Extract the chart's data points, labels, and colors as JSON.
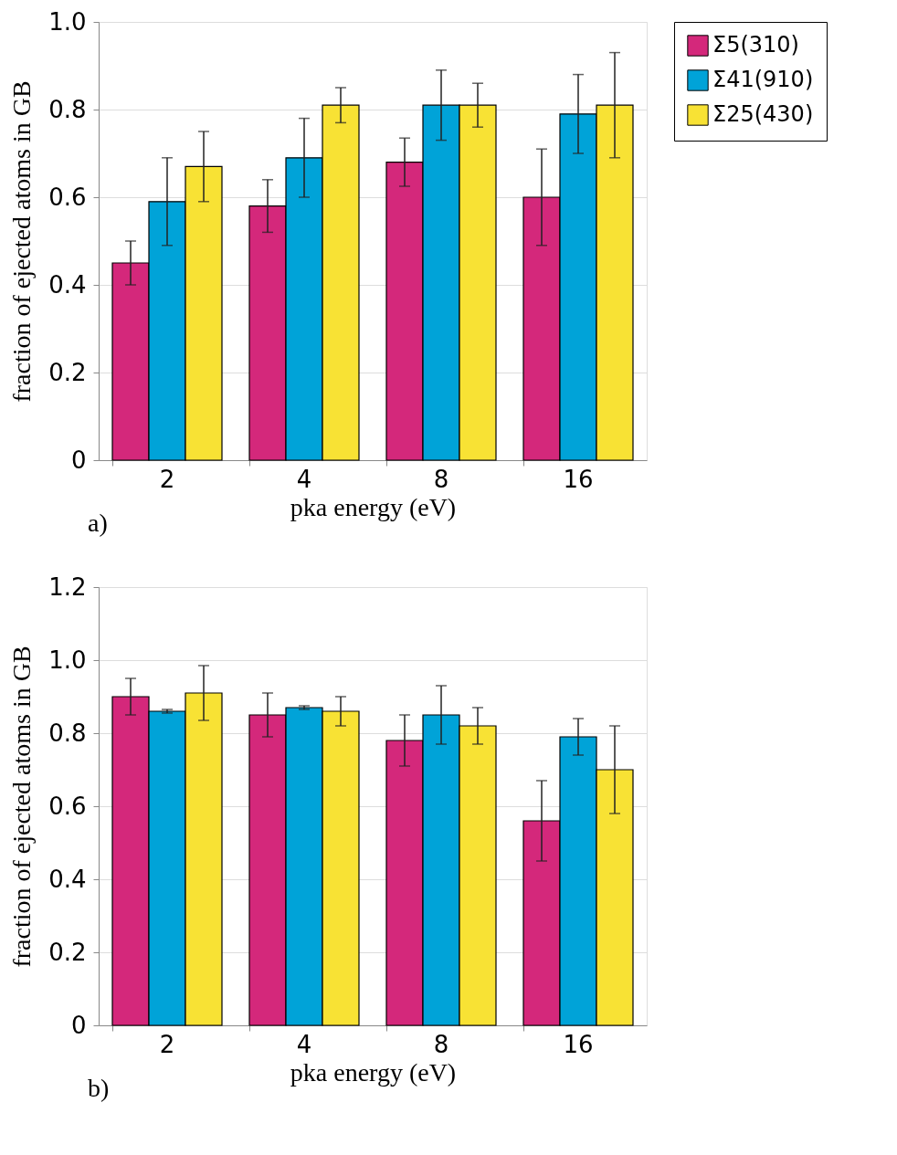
{
  "chart_data": [
    {
      "type": "bar",
      "categories": [
        "2",
        "4",
        "8",
        "16"
      ],
      "xlabel": "pka energy (eV)",
      "ylabel": "fraction of ejected atoms in GB",
      "ylim": [
        0,
        1
      ],
      "yticks": [
        0,
        0.2,
        0.4,
        0.6,
        0.8,
        {
          "value": 1,
          "label": "1.0"
        }
      ],
      "grid": "y",
      "legend": "right",
      "annotations": [
        "a)"
      ],
      "series": [
        {
          "name": "Σ5(310)",
          "color": "#d4287b",
          "values": [
            0.45,
            0.58,
            0.68,
            0.6
          ],
          "errors": [
            0.05,
            0.06,
            0.055,
            0.11
          ]
        },
        {
          "name": "Σ41(910)",
          "color": "#00a3d8",
          "values": [
            0.59,
            0.69,
            0.81,
            0.79
          ],
          "errors": [
            0.1,
            0.09,
            0.08,
            0.09
          ]
        },
        {
          "name": "Σ25(430)",
          "color": "#f8e234",
          "values": [
            0.67,
            0.81,
            0.81,
            0.81
          ],
          "errors": [
            0.08,
            0.04,
            0.05,
            0.12
          ]
        }
      ]
    },
    {
      "type": "bar",
      "categories": [
        "2",
        "4",
        "8",
        "16"
      ],
      "xlabel": "pka energy (eV)",
      "ylabel": "fraction of ejected atoms in GB",
      "ylim": [
        0,
        1.2
      ],
      "yticks": [
        0,
        0.2,
        0.4,
        0.6,
        0.8,
        {
          "value": 1,
          "label": "1.0"
        },
        1.2
      ],
      "grid": "y",
      "annotations": [
        "b)"
      ],
      "series": [
        {
          "color": "#d4287b",
          "values": [
            0.9,
            0.85,
            0.78,
            0.56
          ],
          "errors": [
            0.05,
            0.06,
            0.07,
            0.11
          ]
        },
        {
          "color": "#00a3d8",
          "values": [
            0.86,
            0.87,
            0.85,
            0.79
          ],
          "errors": [
            0.005,
            0.005,
            0.08,
            0.05
          ]
        },
        {
          "color": "#f8e234",
          "values": [
            0.91,
            0.86,
            0.82,
            0.7
          ],
          "errors": [
            0.075,
            0.04,
            0.05,
            0.12
          ]
        }
      ]
    }
  ]
}
